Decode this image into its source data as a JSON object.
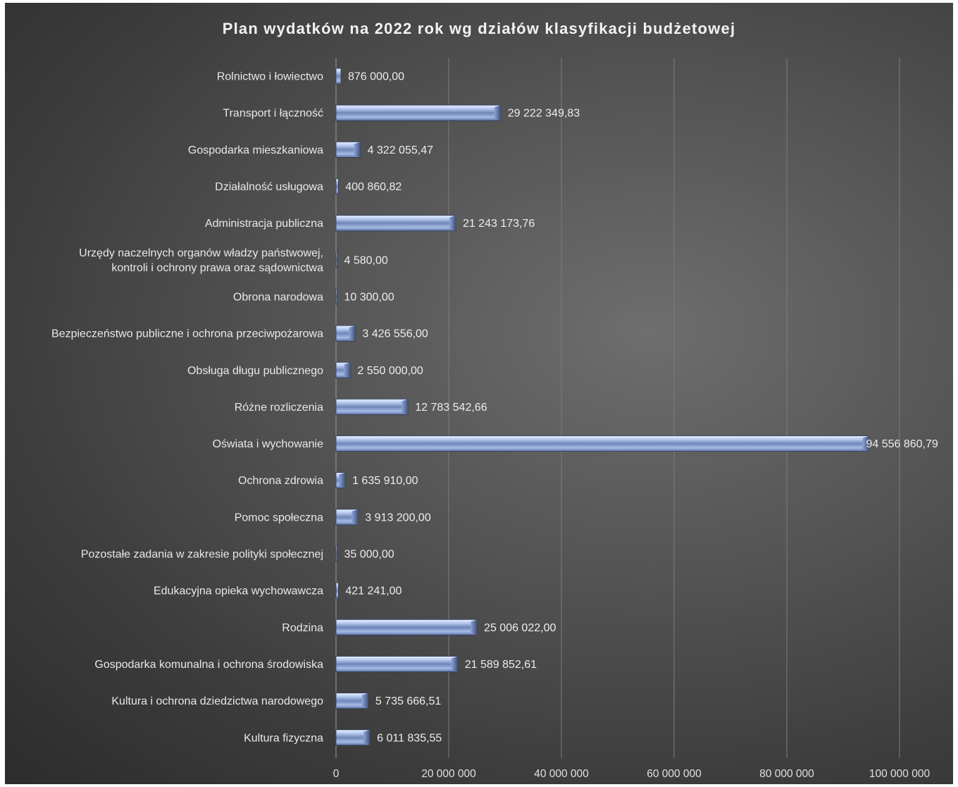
{
  "chart_data": {
    "type": "bar",
    "orientation": "horizontal",
    "title": "Plan wydatków na 2022 rok wg działów klasyfikacji budżetowej",
    "xlabel": "",
    "ylabel": "",
    "xlim": [
      0,
      100000000
    ],
    "x_ticks": [
      0,
      20000000,
      40000000,
      60000000,
      80000000,
      100000000
    ],
    "x_tick_labels": [
      "0",
      "20 000 000",
      "40 000 000",
      "60 000 000",
      "80 000 000",
      "100 000 000"
    ],
    "grid": true,
    "legend": "none",
    "colors": {
      "bar": "#9db4e0",
      "background": "#4a4a4a",
      "text": "#e8e8e8"
    },
    "categories": [
      [
        "Rolnictwo i łowiectwo"
      ],
      [
        "Transport i łączność"
      ],
      [
        "Gospodarka mieszkaniowa"
      ],
      [
        "Działalność usługowa"
      ],
      [
        "Administracja publiczna"
      ],
      [
        "Urzędy naczelnych organów władzy państwowej,",
        "kontroli i ochrony prawa oraz sądownictwa"
      ],
      [
        "Obrona narodowa"
      ],
      [
        "Bezpieczeństwo publiczne i ochrona przeciwpożarowa"
      ],
      [
        "Obsługa długu publicznego"
      ],
      [
        "Różne rozliczenia"
      ],
      [
        "Oświata i wychowanie"
      ],
      [
        "Ochrona zdrowia"
      ],
      [
        "Pomoc społeczna"
      ],
      [
        "Pozostałe zadania w zakresie polityki społecznej"
      ],
      [
        "Edukacyjna opieka wychowawcza"
      ],
      [
        "Rodzina"
      ],
      [
        "Gospodarka komunalna i ochrona środowiska"
      ],
      [
        "Kultura i ochrona dziedzictwa narodowego"
      ],
      [
        "Kultura fizyczna"
      ]
    ],
    "values": [
      876000.0,
      29222349.83,
      4322055.47,
      400860.82,
      21243173.76,
      4580.0,
      10300.0,
      3426556.0,
      2550000.0,
      12783542.66,
      94556860.79,
      1635910.0,
      3913200.0,
      35000.0,
      421241.0,
      25006022.0,
      21589852.61,
      5735666.51,
      6011835.55
    ],
    "value_labels": [
      "876 000,00",
      "29 222 349,83",
      "4 322 055,47",
      "400 860,82",
      "21 243 173,76",
      "4 580,00",
      "10 300,00",
      "3 426 556,00",
      "2 550 000,00",
      "12 783 542,66",
      "94 556 860,79",
      "1 635 910,00",
      "3 913 200,00",
      "35 000,00",
      "421 241,00",
      "25 006 022,00",
      "21 589 852,61",
      "5 735 666,51",
      "6 011 835,55"
    ]
  }
}
